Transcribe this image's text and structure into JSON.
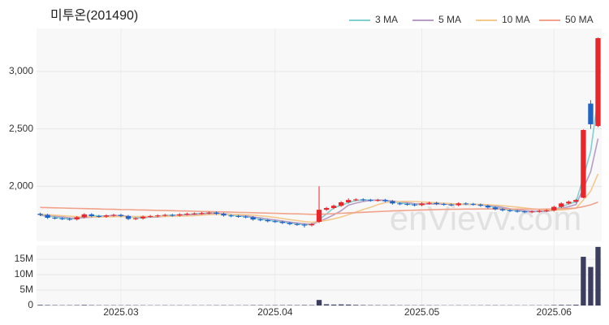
{
  "chart_data": {
    "type": "candlestick",
    "title": "미투온(201490)",
    "watermark": "enVievv.com",
    "categories": [
      null,
      null,
      null,
      null,
      null,
      null,
      null,
      null,
      null,
      null,
      null,
      "2025.03",
      null,
      null,
      null,
      null,
      null,
      null,
      null,
      null,
      null,
      null,
      null,
      null,
      null,
      null,
      null,
      null,
      null,
      null,
      null,
      null,
      "2025.04",
      null,
      null,
      null,
      null,
      null,
      null,
      null,
      null,
      null,
      null,
      null,
      null,
      null,
      null,
      null,
      null,
      null,
      null,
      null,
      "2025.05",
      null,
      null,
      null,
      null,
      null,
      null,
      null,
      null,
      null,
      null,
      null,
      null,
      null,
      null,
      null,
      null,
      null,
      "2025.06",
      null,
      null,
      null,
      null,
      null,
      null
    ],
    "open": [
      1760,
      1750,
      1725,
      1720,
      1715,
      1712,
      1730,
      1755,
      1740,
      1735,
      1745,
      1750,
      1740,
      1715,
      1720,
      1735,
      1740,
      1745,
      1750,
      1745,
      1755,
      1760,
      1762,
      1765,
      1770,
      1760,
      1745,
      1740,
      1735,
      1730,
      1710,
      1705,
      1695,
      1690,
      1680,
      1670,
      1665,
      1660,
      1690,
      1795,
      1810,
      1830,
      1860,
      1880,
      1885,
      1880,
      1875,
      1880,
      1870,
      1850,
      1845,
      1840,
      1835,
      1850,
      1855,
      1845,
      1840,
      1835,
      1850,
      1845,
      1840,
      1830,
      1815,
      1800,
      1790,
      1785,
      1780,
      1775,
      1780,
      1785,
      1790,
      1820,
      1850,
      1865,
      1900,
      2720,
      2525
    ],
    "high": [
      1770,
      1760,
      1735,
      1730,
      1725,
      1740,
      1765,
      1765,
      1750,
      1755,
      1760,
      1760,
      1750,
      1730,
      1745,
      1750,
      1755,
      1760,
      1760,
      1765,
      1770,
      1772,
      1775,
      1780,
      1780,
      1770,
      1755,
      1750,
      1745,
      1740,
      1720,
      1715,
      1705,
      1700,
      1690,
      1680,
      1675,
      1680,
      2000,
      1820,
      1840,
      1870,
      1895,
      1895,
      1895,
      1890,
      1890,
      1890,
      1880,
      1860,
      1855,
      1850,
      1860,
      1865,
      1865,
      1855,
      1850,
      1860,
      1860,
      1855,
      1850,
      1840,
      1825,
      1810,
      1800,
      1795,
      1790,
      1790,
      1795,
      1800,
      1830,
      1860,
      1875,
      1890,
      2495,
      2750,
      3295
    ],
    "low": [
      1740,
      1715,
      1710,
      1705,
      1700,
      1702,
      1720,
      1730,
      1725,
      1725,
      1735,
      1730,
      1705,
      1705,
      1710,
      1725,
      1730,
      1735,
      1735,
      1735,
      1745,
      1750,
      1752,
      1755,
      1750,
      1735,
      1730,
      1725,
      1720,
      1700,
      1695,
      1685,
      1680,
      1670,
      1660,
      1655,
      1640,
      1650,
      1680,
      1785,
      1800,
      1820,
      1850,
      1870,
      1870,
      1865,
      1865,
      1860,
      1840,
      1835,
      1830,
      1825,
      1825,
      1840,
      1835,
      1830,
      1825,
      1825,
      1835,
      1830,
      1820,
      1805,
      1790,
      1780,
      1775,
      1770,
      1765,
      1765,
      1770,
      1775,
      1780,
      1810,
      1840,
      1855,
      1895,
      2500,
      2515
    ],
    "close": [
      1750,
      1725,
      1720,
      1715,
      1712,
      1730,
      1755,
      1740,
      1735,
      1745,
      1750,
      1740,
      1715,
      1720,
      1735,
      1740,
      1745,
      1750,
      1745,
      1755,
      1760,
      1762,
      1765,
      1770,
      1760,
      1745,
      1740,
      1735,
      1730,
      1710,
      1705,
      1695,
      1690,
      1680,
      1670,
      1665,
      1660,
      1670,
      1795,
      1810,
      1830,
      1860,
      1880,
      1885,
      1880,
      1875,
      1880,
      1870,
      1850,
      1845,
      1840,
      1835,
      1850,
      1855,
      1845,
      1840,
      1835,
      1850,
      1845,
      1840,
      1830,
      1815,
      1800,
      1790,
      1785,
      1780,
      1775,
      1780,
      1785,
      1790,
      1820,
      1850,
      1865,
      1880,
      2490,
      2540,
      3290
    ],
    "up_color": "#e8262b",
    "down_color": "#1f63c6",
    "ylim": [
      1520,
      3375
    ],
    "yticks": [
      {
        "value": 2000,
        "label": "2,000"
      },
      {
        "value": 2500,
        "label": "2,500"
      },
      {
        "value": 3000,
        "label": "3,000"
      }
    ],
    "grid": true,
    "legend": "top-right",
    "series": [
      {
        "name": "3 MA",
        "color": "#7fd1d0",
        "values": [
          1745,
          1740,
          1732,
          1720,
          1716,
          1719,
          1732,
          1742,
          1743,
          1740,
          1743,
          1745,
          1735,
          1725,
          1723,
          1732,
          1740,
          1745,
          1747,
          1750,
          1753,
          1759,
          1762,
          1766,
          1765,
          1758,
          1748,
          1740,
          1735,
          1725,
          1715,
          1703,
          1697,
          1688,
          1680,
          1672,
          1665,
          1665,
          1708,
          1758,
          1812,
          1833,
          1857,
          1875,
          1882,
          1880,
          1878,
          1875,
          1867,
          1855,
          1845,
          1840,
          1842,
          1847,
          1850,
          1847,
          1840,
          1842,
          1843,
          1845,
          1838,
          1828,
          1815,
          1802,
          1792,
          1785,
          1780,
          1778,
          1780,
          1785,
          1798,
          1820,
          1845,
          1865,
          2078,
          2303,
          2773
        ]
      },
      {
        "name": "5 MA",
        "color": "#b79cc6",
        "values": [
          1748,
          1745,
          1740,
          1732,
          1724,
          1720,
          1727,
          1730,
          1734,
          1741,
          1745,
          1744,
          1737,
          1734,
          1732,
          1730,
          1731,
          1738,
          1743,
          1747,
          1751,
          1754,
          1757,
          1762,
          1763,
          1760,
          1756,
          1750,
          1742,
          1732,
          1724,
          1715,
          1706,
          1696,
          1688,
          1680,
          1673,
          1669,
          1692,
          1720,
          1751,
          1787,
          1835,
          1853,
          1867,
          1876,
          1880,
          1878,
          1870,
          1864,
          1857,
          1848,
          1844,
          1845,
          1845,
          1845,
          1845,
          1845,
          1843,
          1842,
          1840,
          1836,
          1826,
          1815,
          1804,
          1794,
          1786,
          1782,
          1781,
          1782,
          1790,
          1805,
          1822,
          1841,
          1981,
          2125,
          2415
        ]
      },
      {
        "name": "10 MA",
        "color": "#f3c98d",
        "values": [
          1755,
          1752,
          1748,
          1744,
          1739,
          1735,
          1735,
          1733,
          1731,
          1733,
          1734,
          1735,
          1734,
          1735,
          1737,
          1737,
          1736,
          1737,
          1738,
          1740,
          1741,
          1743,
          1748,
          1752,
          1754,
          1755,
          1754,
          1753,
          1752,
          1748,
          1742,
          1735,
          1728,
          1719,
          1709,
          1701,
          1692,
          1686,
          1693,
          1703,
          1716,
          1732,
          1753,
          1775,
          1797,
          1817,
          1839,
          1858,
          1863,
          1867,
          1868,
          1866,
          1863,
          1860,
          1856,
          1852,
          1849,
          1846,
          1844,
          1843,
          1842,
          1839,
          1835,
          1830,
          1824,
          1818,
          1811,
          1804,
          1798,
          1792,
          1791,
          1793,
          1800,
          1809,
          1880,
          1957,
          2108
        ]
      },
      {
        "name": "50 MA",
        "color": "#f2a28a",
        "values": [
          1815,
          1813,
          1812,
          1810,
          1808,
          1807,
          1805,
          1804,
          1802,
          1800,
          1799,
          1797,
          1796,
          1794,
          1793,
          1791,
          1790,
          1788,
          1787,
          1785,
          1784,
          1782,
          1780,
          1779,
          1777,
          1776,
          1774,
          1772,
          1771,
          1769,
          1767,
          1766,
          1764,
          1762,
          1760,
          1759,
          1757,
          1755,
          1756,
          1758,
          1761,
          1764,
          1767,
          1770,
          1773,
          1776,
          1779,
          1782,
          1785,
          1787,
          1789,
          1791,
          1793,
          1795,
          1797,
          1798,
          1799,
          1800,
          1801,
          1801,
          1802,
          1802,
          1802,
          1802,
          1801,
          1801,
          1800,
          1800,
          1800,
          1801,
          1802,
          1804,
          1806,
          1810,
          1822,
          1838,
          1862
        ]
      }
    ],
    "volume": {
      "color": "#3b3e5f",
      "ylim": [
        0,
        19500000
      ],
      "yticks": [
        0,
        {
          "value": 5000000,
          "label": "5M"
        },
        {
          "value": 10000000,
          "label": "10M"
        },
        {
          "value": 15000000,
          "label": "15M"
        }
      ],
      "values": [
        200000,
        150000,
        120000,
        100000,
        110000,
        130000,
        180000,
        120000,
        100000,
        90000,
        100000,
        90000,
        110000,
        100000,
        90000,
        80000,
        80000,
        90000,
        80000,
        90000,
        80000,
        80000,
        70000,
        80000,
        90000,
        100000,
        90000,
        80000,
        90000,
        120000,
        110000,
        100000,
        110000,
        120000,
        130000,
        120000,
        150000,
        130000,
        1800000,
        400000,
        300000,
        350000,
        300000,
        200000,
        150000,
        120000,
        110000,
        100000,
        120000,
        100000,
        90000,
        80000,
        100000,
        90000,
        80000,
        70000,
        70000,
        80000,
        70000,
        70000,
        80000,
        90000,
        90000,
        80000,
        80000,
        70000,
        70000,
        80000,
        80000,
        90000,
        150000,
        200000,
        180000,
        250000,
        15800000,
        12500000,
        19000000
      ]
    }
  }
}
